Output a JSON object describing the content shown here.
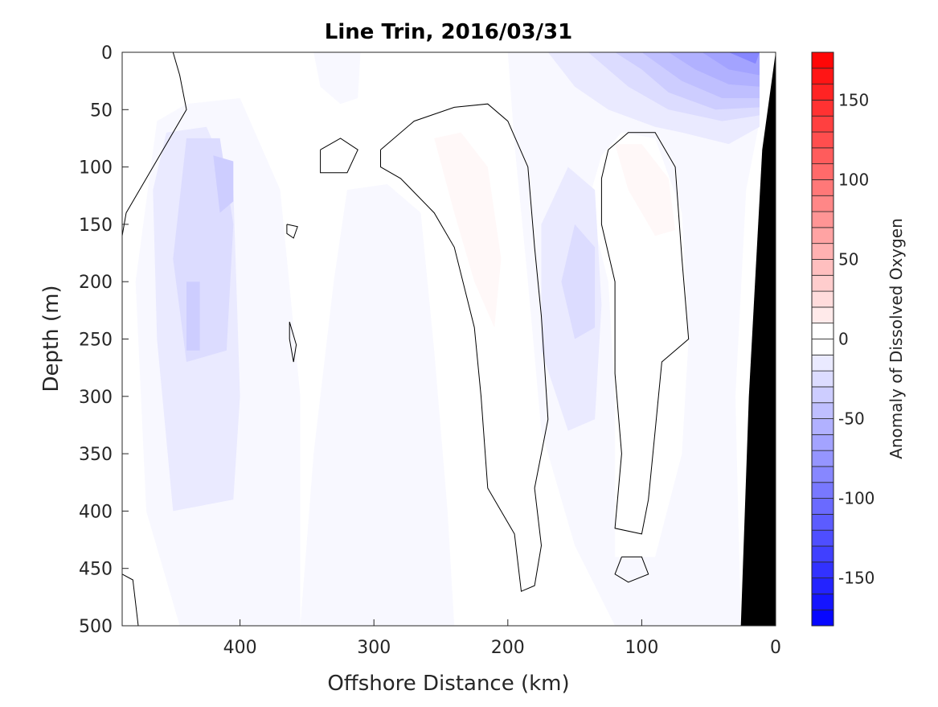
{
  "chart_data": {
    "type": "heatmap",
    "subtype": "filled-contour",
    "title": "Line Trin, 2016/03/31",
    "xlabel": "Offshore Distance (km)",
    "ylabel": "Depth (m)",
    "xlim": [
      488,
      0
    ],
    "ylim": [
      0,
      500
    ],
    "xticks": [
      400,
      300,
      200,
      100,
      0
    ],
    "yticks": [
      0,
      50,
      100,
      150,
      200,
      250,
      300,
      350,
      400,
      450,
      500
    ],
    "colorbar": {
      "label": "Anomaly of Dissolved Oxygen",
      "range": [
        -180,
        180
      ],
      "level_step": 10,
      "ticks": [
        150,
        100,
        50,
        0,
        -50,
        -100,
        -150
      ],
      "colors": {
        "negative": "#0000ff",
        "zero": "#ffffff",
        "positive": "#ff0000"
      }
    },
    "regions": [
      {
        "value": -10,
        "points": [
          [
            462,
            60
          ],
          [
            440,
            45
          ],
          [
            400,
            40
          ],
          [
            370,
            120
          ],
          [
            355,
            300
          ],
          [
            355,
            500
          ],
          [
            445,
            500
          ],
          [
            470,
            400
          ],
          [
            478,
            200
          ]
        ]
      },
      {
        "value": -10,
        "points": [
          [
            345,
            0
          ],
          [
            310,
            0
          ],
          [
            312,
            40
          ],
          [
            325,
            45
          ],
          [
            340,
            30
          ]
        ]
      },
      {
        "value": -10,
        "points": [
          [
            320,
            120
          ],
          [
            290,
            115
          ],
          [
            265,
            140
          ],
          [
            255,
            260
          ],
          [
            245,
            400
          ],
          [
            240,
            500
          ],
          [
            355,
            500
          ],
          [
            345,
            350
          ],
          [
            330,
            200
          ]
        ]
      },
      {
        "value": -10,
        "points": [
          [
            200,
            0
          ],
          [
            12,
            0
          ],
          [
            12,
            60
          ],
          [
            22,
            120
          ],
          [
            30,
            300
          ],
          [
            26,
            500
          ],
          [
            120,
            500
          ],
          [
            150,
            430
          ],
          [
            175,
            330
          ],
          [
            185,
            200
          ],
          [
            195,
            80
          ]
        ]
      },
      {
        "value": 0,
        "points": [
          [
            130,
            90
          ],
          [
            115,
            70
          ],
          [
            90,
            75
          ],
          [
            70,
            140
          ],
          [
            65,
            250
          ],
          [
            70,
            350
          ],
          [
            90,
            440
          ],
          [
            120,
            440
          ],
          [
            120,
            300
          ],
          [
            125,
            200
          ],
          [
            140,
            130
          ]
        ]
      },
      {
        "value": -20,
        "points": [
          [
            455,
            70
          ],
          [
            425,
            65
          ],
          [
            405,
            120
          ],
          [
            400,
            300
          ],
          [
            405,
            390
          ],
          [
            450,
            400
          ],
          [
            462,
            250
          ],
          [
            465,
            120
          ]
        ]
      },
      {
        "value": -30,
        "points": [
          [
            440,
            75
          ],
          [
            415,
            75
          ],
          [
            405,
            150
          ],
          [
            410,
            260
          ],
          [
            440,
            270
          ],
          [
            450,
            180
          ]
        ]
      },
      {
        "value": -40,
        "points": [
          [
            420,
            90
          ],
          [
            405,
            95
          ],
          [
            405,
            130
          ],
          [
            415,
            140
          ]
        ]
      },
      {
        "value": -40,
        "points": [
          [
            440,
            200
          ],
          [
            430,
            200
          ],
          [
            430,
            260
          ],
          [
            440,
            260
          ]
        ]
      },
      {
        "value": -20,
        "points": [
          [
            155,
            100
          ],
          [
            135,
            120
          ],
          [
            130,
            220
          ],
          [
            135,
            320
          ],
          [
            155,
            330
          ],
          [
            175,
            260
          ],
          [
            175,
            150
          ]
        ]
      },
      {
        "value": -30,
        "points": [
          [
            150,
            150
          ],
          [
            135,
            170
          ],
          [
            135,
            240
          ],
          [
            150,
            250
          ],
          [
            160,
            200
          ]
        ]
      },
      {
        "value": -20,
        "points": [
          [
            170,
            0
          ],
          [
            12,
            0
          ],
          [
            12,
            65
          ],
          [
            35,
            80
          ],
          [
            70,
            70
          ],
          [
            90,
            65
          ],
          [
            125,
            50
          ],
          [
            150,
            30
          ]
        ]
      },
      {
        "value": -30,
        "points": [
          [
            140,
            0
          ],
          [
            12,
            0
          ],
          [
            12,
            55
          ],
          [
            40,
            60
          ],
          [
            80,
            50
          ],
          [
            110,
            30
          ]
        ]
      },
      {
        "value": -40,
        "points": [
          [
            120,
            0
          ],
          [
            12,
            0
          ],
          [
            12,
            48
          ],
          [
            45,
            50
          ],
          [
            80,
            35
          ],
          [
            100,
            15
          ]
        ]
      },
      {
        "value": -50,
        "points": [
          [
            100,
            0
          ],
          [
            12,
            0
          ],
          [
            12,
            40
          ],
          [
            40,
            40
          ],
          [
            70,
            25
          ]
        ]
      },
      {
        "value": -60,
        "points": [
          [
            80,
            0
          ],
          [
            12,
            0
          ],
          [
            12,
            30
          ],
          [
            35,
            28
          ],
          [
            60,
            15
          ]
        ]
      },
      {
        "value": -70,
        "points": [
          [
            55,
            0
          ],
          [
            12,
            0
          ],
          [
            12,
            20
          ],
          [
            35,
            15
          ]
        ]
      },
      {
        "value": -90,
        "points": [
          [
            35,
            0
          ],
          [
            12,
            0
          ],
          [
            15,
            10
          ]
        ]
      },
      {
        "value": 10,
        "points": [
          [
            255,
            75
          ],
          [
            235,
            70
          ],
          [
            215,
            100
          ],
          [
            205,
            180
          ],
          [
            210,
            240
          ],
          [
            225,
            200
          ],
          [
            240,
            140
          ]
        ]
      },
      {
        "value": 10,
        "points": [
          [
            120,
            80
          ],
          [
            100,
            80
          ],
          [
            80,
            110
          ],
          [
            75,
            155
          ],
          [
            90,
            160
          ],
          [
            110,
            120
          ]
        ]
      }
    ],
    "zero_contours": [
      [
        [
          295,
          85
        ],
        [
          270,
          60
        ],
        [
          240,
          48
        ],
        [
          215,
          45
        ],
        [
          200,
          60
        ],
        [
          185,
          100
        ],
        [
          180,
          170
        ],
        [
          175,
          230
        ],
        [
          170,
          320
        ],
        [
          180,
          380
        ],
        [
          175,
          430
        ],
        [
          180,
          465
        ],
        [
          190,
          470
        ],
        [
          195,
          420
        ],
        [
          215,
          380
        ],
        [
          220,
          300
        ],
        [
          225,
          240
        ],
        [
          240,
          170
        ],
        [
          255,
          140
        ],
        [
          280,
          110
        ],
        [
          295,
          100
        ],
        [
          295,
          85
        ]
      ],
      [
        [
          125,
          85
        ],
        [
          110,
          70
        ],
        [
          90,
          70
        ],
        [
          75,
          100
        ],
        [
          70,
          180
        ],
        [
          65,
          250
        ],
        [
          85,
          270
        ],
        [
          90,
          330
        ],
        [
          95,
          390
        ],
        [
          100,
          420
        ],
        [
          120,
          415
        ],
        [
          115,
          350
        ],
        [
          120,
          280
        ],
        [
          120,
          200
        ],
        [
          130,
          150
        ],
        [
          130,
          110
        ],
        [
          125,
          85
        ]
      ],
      [
        [
          340,
          85
        ],
        [
          325,
          75
        ],
        [
          312,
          85
        ],
        [
          320,
          105
        ],
        [
          340,
          105
        ],
        [
          340,
          85
        ]
      ],
      [
        [
          450,
          0
        ],
        [
          445,
          20
        ],
        [
          440,
          50
        ],
        [
          465,
          100
        ],
        [
          485,
          140
        ],
        [
          488,
          160
        ]
      ],
      [
        [
          365,
          150
        ],
        [
          357,
          152
        ],
        [
          360,
          162
        ],
        [
          365,
          158
        ],
        [
          365,
          150
        ]
      ],
      [
        [
          363,
          235
        ],
        [
          358,
          255
        ],
        [
          360,
          270
        ],
        [
          363,
          250
        ],
        [
          363,
          235
        ]
      ],
      [
        [
          115,
          440
        ],
        [
          100,
          440
        ],
        [
          95,
          455
        ],
        [
          110,
          462
        ],
        [
          120,
          455
        ],
        [
          115,
          440
        ]
      ],
      [
        [
          488,
          455
        ],
        [
          480,
          460
        ],
        [
          476,
          500
        ]
      ]
    ],
    "bathymetry": [
      [
        0,
        0
      ],
      [
        0,
        500
      ],
      [
        26,
        500
      ],
      [
        20,
        300
      ],
      [
        10,
        85
      ]
    ]
  }
}
